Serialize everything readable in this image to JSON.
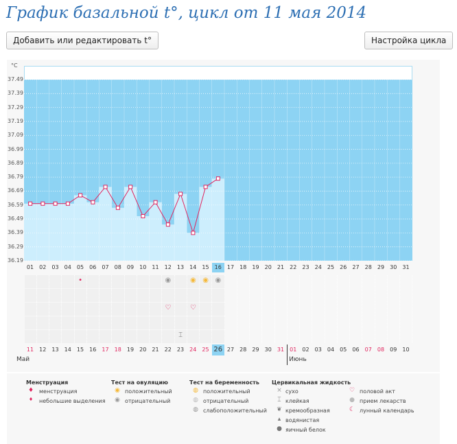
{
  "header": {
    "title": "График базальной t°, цикл от 11 мая 2014",
    "add_button": "Добавить или редактировать t°",
    "settings_button": "Настройка цикла"
  },
  "chart_data": {
    "type": "bar",
    "title": "График базальной t°, цикл от 11 мая 2014",
    "ylabel": "°C",
    "ylim": [
      36.19,
      37.49
    ],
    "yticks": [
      "37.49",
      "37.39",
      "37.29",
      "37.19",
      "37.09",
      "36.99",
      "36.89",
      "36.79",
      "36.69",
      "36.59",
      "36.49",
      "36.39",
      "36.29",
      "36.19"
    ],
    "cycle_days": [
      "01",
      "02",
      "03",
      "04",
      "05",
      "06",
      "07",
      "08",
      "09",
      "10",
      "11",
      "12",
      "13",
      "14",
      "15",
      "16",
      "17",
      "18",
      "19",
      "20",
      "21",
      "22",
      "23",
      "24",
      "25",
      "26",
      "27",
      "28",
      "29",
      "30",
      "31"
    ],
    "values": [
      36.6,
      36.6,
      36.6,
      36.6,
      36.66,
      36.61,
      36.72,
      36.57,
      36.72,
      36.51,
      36.61,
      36.45,
      36.67,
      36.39,
      36.72,
      36.78,
      null,
      null,
      null,
      null,
      null,
      null,
      null,
      null,
      null,
      null,
      null,
      null,
      null,
      null,
      null
    ],
    "current_day_index": 15,
    "dates": [
      "11",
      "12",
      "13",
      "14",
      "15",
      "16",
      "17",
      "18",
      "19",
      "20",
      "21",
      "22",
      "23",
      "24",
      "25",
      "26",
      "27",
      "28",
      "29",
      "30",
      "31",
      "01",
      "02",
      "03",
      "04",
      "05",
      "06",
      "07",
      "08",
      "09",
      "10"
    ],
    "weekend_date_indices": [
      0,
      6,
      7,
      13,
      14,
      20,
      21,
      27,
      28
    ],
    "month_start": "Май",
    "month_next": "Июнь",
    "month_next_index": 21,
    "markers": [
      {
        "day_index": 4,
        "row": 0,
        "icon": "drop-small-icon",
        "glyph": "•",
        "color": "#e0245e"
      },
      {
        "day_index": 11,
        "row": 0,
        "icon": "ovulation-negative-icon",
        "glyph": "◉",
        "color": "#999999"
      },
      {
        "day_index": 13,
        "row": 0,
        "icon": "ovulation-positive-icon",
        "glyph": "◉",
        "color": "#f5b93a"
      },
      {
        "day_index": 14,
        "row": 0,
        "icon": "ovulation-positive-icon",
        "glyph": "◉",
        "color": "#f5b93a"
      },
      {
        "day_index": 15,
        "row": 0,
        "icon": "ovulation-negative-icon",
        "glyph": "◉",
        "color": "#999999"
      },
      {
        "day_index": 11,
        "row": 2,
        "icon": "heart-icon",
        "glyph": "♡",
        "color": "#e0245e"
      },
      {
        "day_index": 13,
        "row": 2,
        "icon": "heart-icon",
        "glyph": "♡",
        "color": "#e0245e"
      },
      {
        "day_index": 12,
        "row": 4,
        "icon": "sticky-icon",
        "glyph": "⌶",
        "color": "#777777"
      }
    ]
  },
  "legend": {
    "menstruation": {
      "heading": "Менструация",
      "items": [
        "менструация",
        "небольшие выделения"
      ]
    },
    "ovulation": {
      "heading": "Тест на овуляцию",
      "items": [
        "положительный",
        "отрицательный"
      ]
    },
    "pregnancy": {
      "heading": "Тест на беременность",
      "items": [
        "положительный",
        "отрицательный",
        "слабоположительный"
      ]
    },
    "cervical": {
      "heading": "Цервикальная жидкость",
      "items": [
        "сухо",
        "клейкая",
        "кремообразная",
        "водянистая",
        "яичный белок"
      ]
    },
    "other": {
      "items": [
        "половой акт",
        "прием лекарств",
        "лунный календарь"
      ]
    }
  },
  "colors": {
    "accent": "#2d6fb3",
    "bar": "#cdeefd",
    "plot_bg": "#8dd3f3",
    "line": "#e0245e",
    "weekend": "#e0245e",
    "current": "#8dd3f3"
  }
}
